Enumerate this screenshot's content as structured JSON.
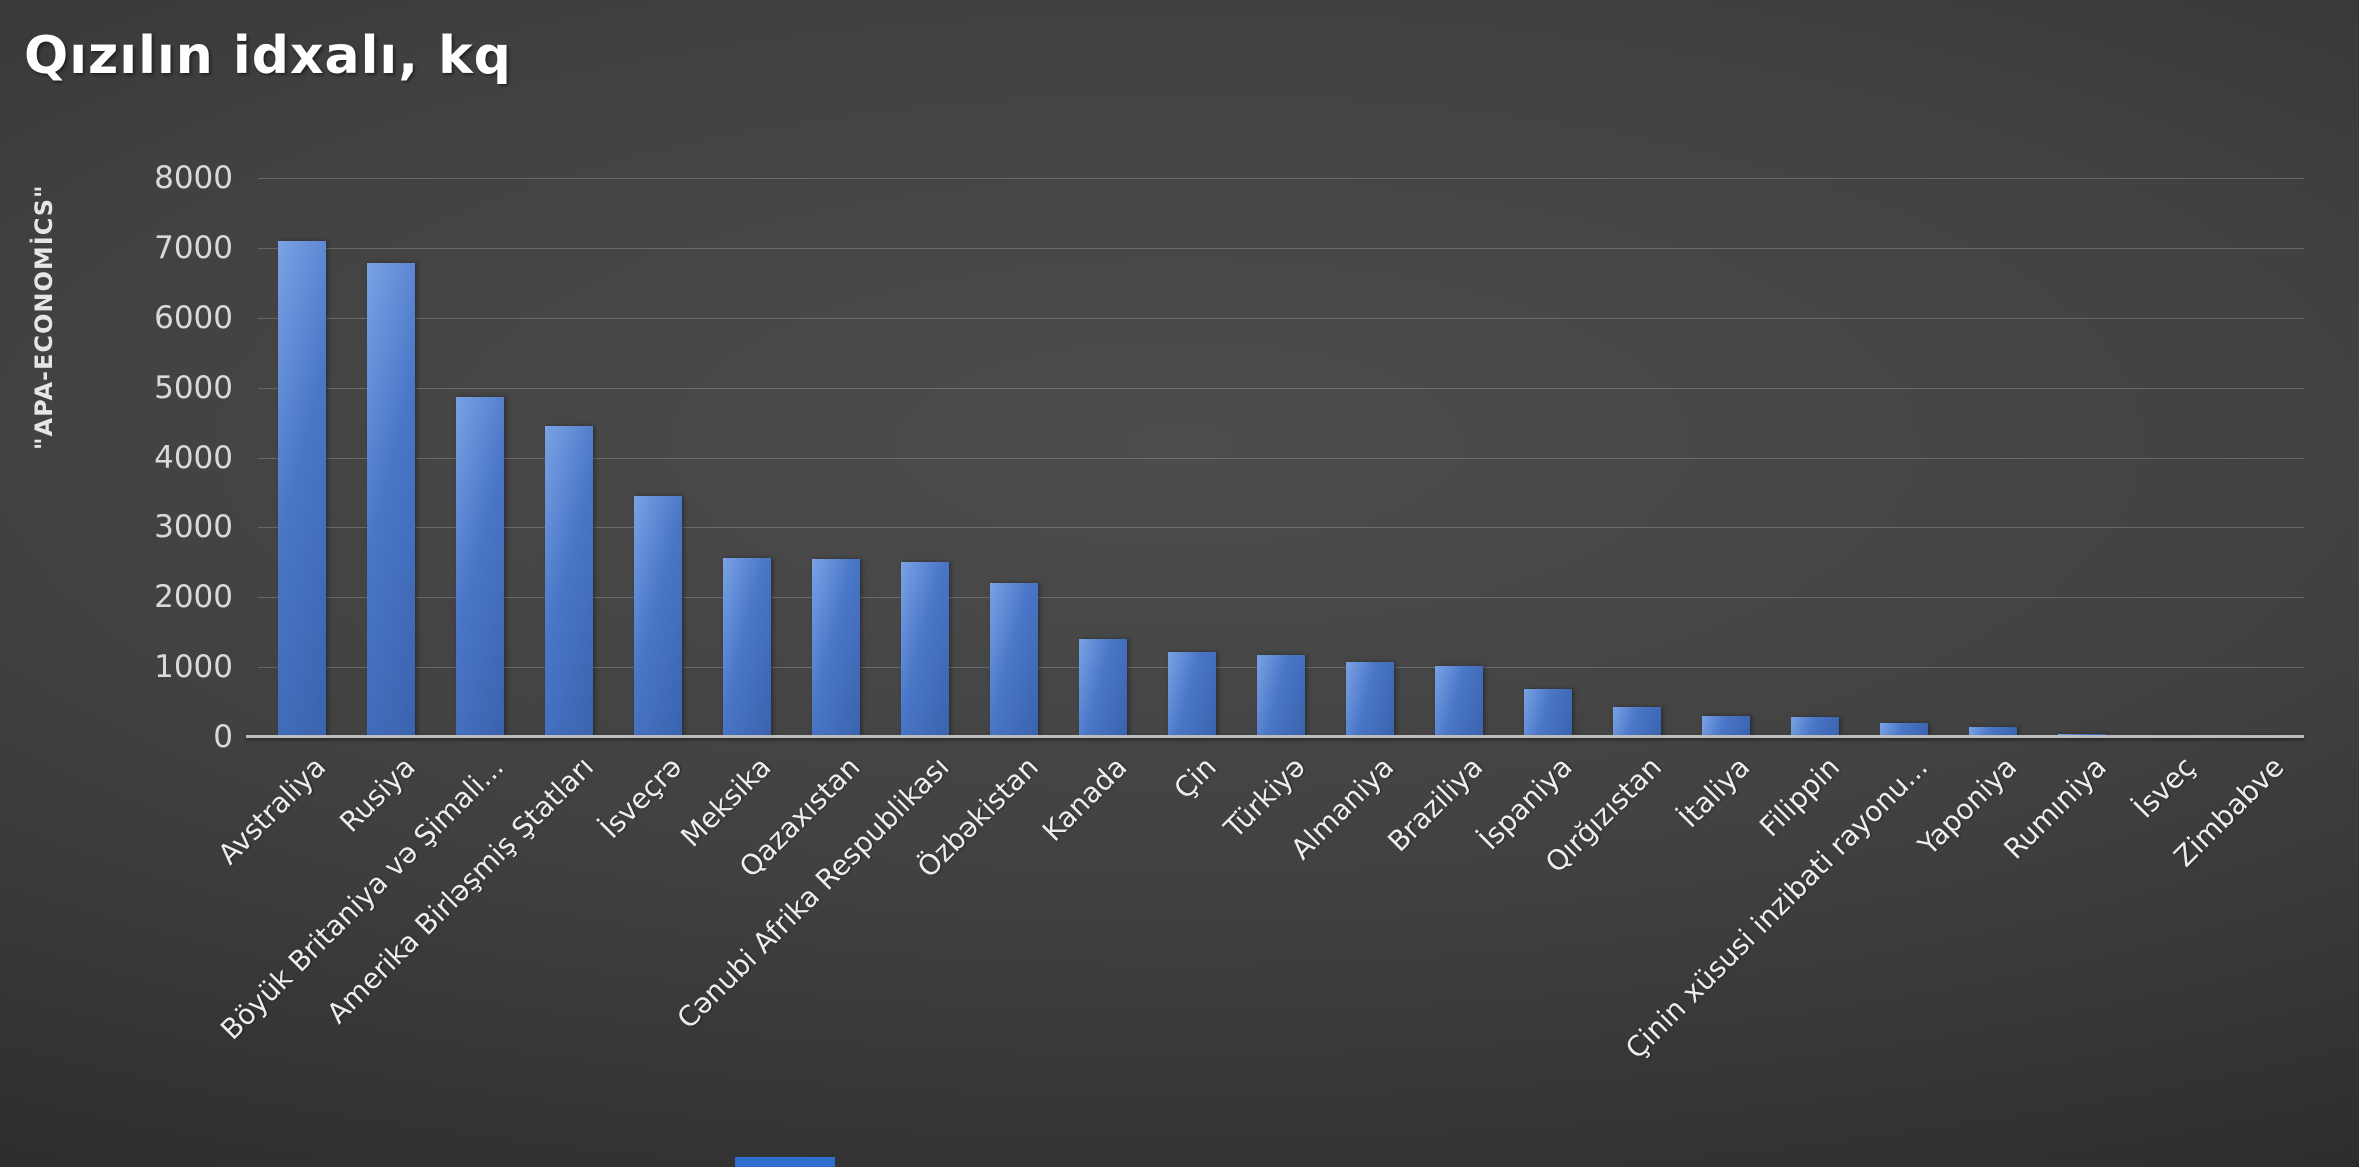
{
  "chart_data": {
    "type": "bar",
    "title": "Qızılın idxalı, kq",
    "source_label": "\"APA-ECONOMİCS\"",
    "categories": [
      "Avstraliya",
      "Rusiya",
      "Böyük Britaniya və Şimali...",
      "Amerika Birləşmiş Ştatları",
      "İsveçrə",
      "Meksika",
      "Qazaxıstan",
      "Cənubi Afrika Respublikası",
      "Özbəkistan",
      "Kanada",
      "Çin",
      "Türkiyə",
      "Almaniya",
      "Braziliya",
      "İspaniya",
      "Qırğızıstan",
      "İtaliya",
      "Filippin",
      "Çinin xüsusi inzibati rayonu...",
      "Yaponiya",
      "Rumıniya",
      "İsveç",
      "Zimbabve"
    ],
    "values": [
      7100,
      6780,
      4860,
      4450,
      3450,
      2560,
      2545,
      2510,
      2200,
      1400,
      1210,
      1180,
      1070,
      1010,
      690,
      430,
      305,
      285,
      200,
      150,
      45,
      25,
      15
    ],
    "xlabel": "",
    "ylabel": "",
    "ylim": [
      0,
      8000
    ],
    "ytick_step": 1000,
    "grid": true,
    "legend": "none",
    "colors": {
      "background_center": "#4c4c4c",
      "background_edge": "#1f1f1f",
      "bar_light": "#7aa2e4",
      "bar_main": "#4a76c8",
      "bar_dark": "#3a63ae",
      "axis_line": "#bdbdbd",
      "tick_text": "#d9d9d9",
      "label_text": "#ededed",
      "title_text": "#ffffff",
      "bottom_strip": "#2f6ecf"
    }
  }
}
